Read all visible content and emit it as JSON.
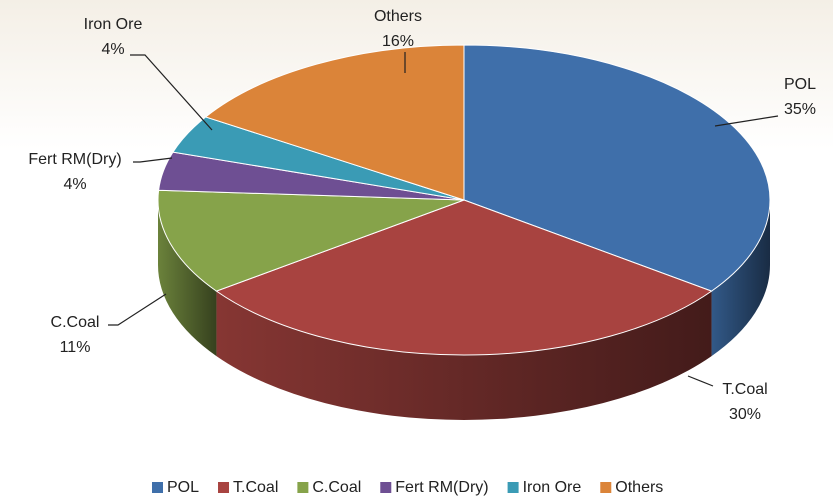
{
  "chart_data": {
    "type": "pie",
    "categories": [
      "POL",
      "T.Coal",
      "C.Coal",
      "Fert RM(Dry)",
      "Iron Ore",
      "Others"
    ],
    "values": [
      35,
      30,
      11,
      4,
      4,
      16
    ],
    "value_labels": [
      "35%",
      "30%",
      "11%",
      "4%",
      "4%",
      "16%"
    ],
    "colors": [
      "#3f6faa",
      "#a84340",
      "#86a34a",
      "#6e4f93",
      "#3a9bb5",
      "#db8439"
    ],
    "legend": "bottom"
  }
}
